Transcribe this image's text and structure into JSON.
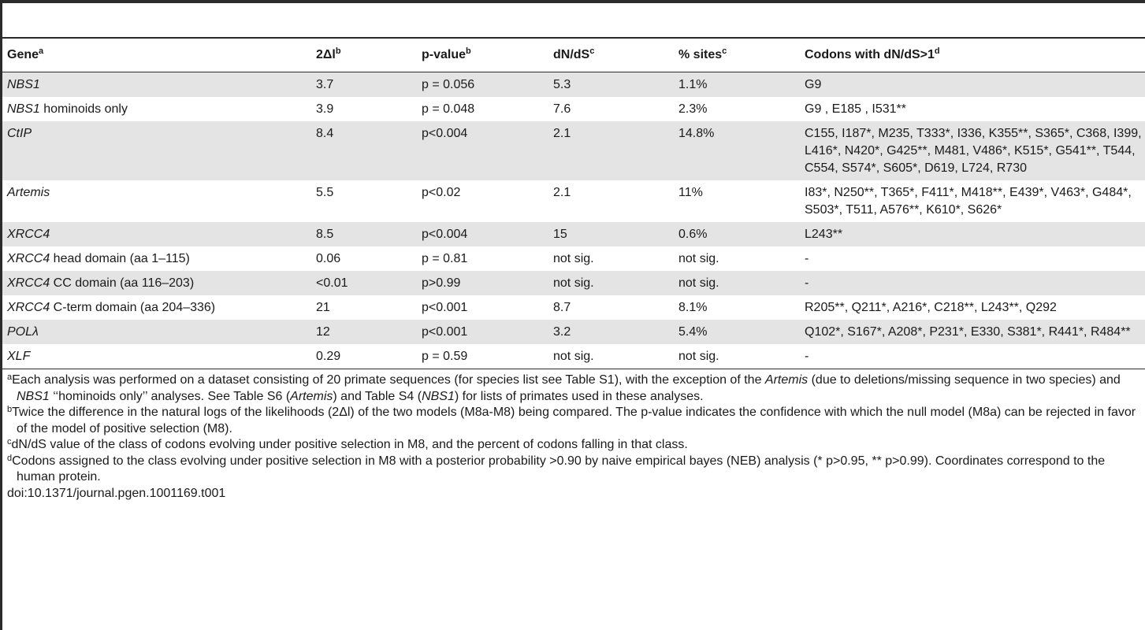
{
  "table": {
    "headers": [
      {
        "label": "Gene",
        "sup": "a"
      },
      {
        "label": "2Δl",
        "sup": "b"
      },
      {
        "label": "p-value",
        "sup": "b"
      },
      {
        "label": "dN/dS",
        "sup": "c"
      },
      {
        "label": "% sites",
        "sup": "c"
      },
      {
        "label": "Codons with dN/dS>1",
        "sup": "d"
      }
    ],
    "rows": [
      {
        "gene_italic": "NBS1",
        "gene_rest": "",
        "dl": "3.7",
        "p": "p = 0.056",
        "dnds": "5.3",
        "sites": "1.1%",
        "codons": "G9"
      },
      {
        "gene_italic": "NBS1",
        "gene_rest": " hominoids only",
        "dl": "3.9",
        "p": "p = 0.048",
        "dnds": "7.6",
        "sites": "2.3%",
        "codons": "G9 , E185 , I531**"
      },
      {
        "gene_italic": "CtIP",
        "gene_rest": "",
        "dl": "8.4",
        "p": "p<0.004",
        "dnds": "2.1",
        "sites": "14.8%",
        "codons": "C155, I187*, M235, T333*, I336, K355**, S365*, C368, I399, L416*, N420*, G425**, M481, V486*, K515*, G541**, T544, C554, S574*, S605*, D619, L724, R730"
      },
      {
        "gene_italic": "Artemis",
        "gene_rest": "",
        "dl": "5.5",
        "p": "p<0.02",
        "dnds": "2.1",
        "sites": "11%",
        "codons": "I83*, N250**, T365*, F411*, M418**, E439*, V463*, G484*, S503*, T511, A576**, K610*, S626*"
      },
      {
        "gene_italic": "XRCC4",
        "gene_rest": "",
        "dl": "8.5",
        "p": "p<0.004",
        "dnds": "15",
        "sites": "0.6%",
        "codons": "L243**"
      },
      {
        "gene_italic": "XRCC4",
        "gene_rest": " head domain (aa 1–115)",
        "dl": "0.06",
        "p": "p = 0.81",
        "dnds": "not sig.",
        "sites": "not sig.",
        "codons": "-"
      },
      {
        "gene_italic": "XRCC4",
        "gene_rest": " CC domain (aa 116–203)",
        "dl": "<0.01",
        "p": "p>0.99",
        "dnds": "not sig.",
        "sites": "not sig.",
        "codons": "-"
      },
      {
        "gene_italic": "XRCC4",
        "gene_rest": " C-term domain (aa 204–336)",
        "dl": "21",
        "p": "p<0.001",
        "dnds": "8.7",
        "sites": "8.1%",
        "codons": "R205**, Q211*, A216*, C218**, L243**, Q292"
      },
      {
        "gene_italic": "POLλ",
        "gene_rest": "",
        "dl": "12",
        "p": "p<0.001",
        "dnds": "3.2",
        "sites": "5.4%",
        "codons": "Q102*, S167*, A208*, P231*, E330, S381*, R441*, R484**"
      },
      {
        "gene_italic": "XLF",
        "gene_rest": "",
        "dl": "0.29",
        "p": "p = 0.59",
        "dnds": "not sig.",
        "sites": "not sig.",
        "codons": "-"
      }
    ]
  },
  "footnotes": {
    "a": {
      "mark": "a",
      "text1": "Each analysis was performed on a dataset consisting of 20 primate sequences (for species list see Table S1), with the exception of the ",
      "italic1": "Artemis",
      "text2": " (due to deletions/missing sequence in two species) and ",
      "italic2": "NBS1",
      "text3": " ‘‘hominoids only’’ analyses. See Table S6 (",
      "italic3": "Artemis",
      "text4": ") and Table S4 (",
      "italic4": "NBS1",
      "text5": ") for lists of primates used in these analyses."
    },
    "b": {
      "mark": "b",
      "text": "Twice the difference in the natural logs of the likelihoods (2Δl) of the two models (M8a-M8) being compared. The p-value indicates the confidence with which the null model (M8a) can be rejected in favor of the model of positive selection (M8)."
    },
    "c": {
      "mark": "c",
      "text": "dN/dS value of the class of codons evolving under positive selection in M8, and the percent of codons falling in that class."
    },
    "d": {
      "mark": "d",
      "text": "Codons assigned to the class evolving under positive selection in M8 with a posterior probability >0.90 by naive empirical bayes (NEB) analysis (* p>0.95, ** p>0.99). Coordinates correspond to the human protein."
    },
    "doi": "doi:10.1371/journal.pgen.1001169.t001"
  }
}
